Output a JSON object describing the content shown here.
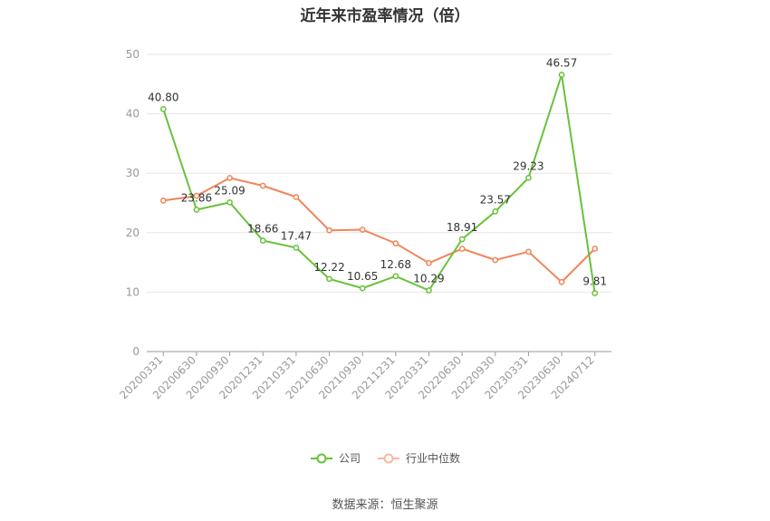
{
  "chart_data": {
    "type": "line",
    "title": "近年来市盈率情况（倍）",
    "xlabel": "",
    "ylabel": "",
    "categories": [
      "20200331",
      "20200630",
      "20200930",
      "20201231",
      "20210331",
      "20210630",
      "20210930",
      "20211231",
      "20220331",
      "20220630",
      "20220930",
      "20230331",
      "20230630",
      "20240712"
    ],
    "ylim": [
      0,
      50
    ],
    "yticks": [
      0,
      10,
      20,
      30,
      40,
      50
    ],
    "grid": true,
    "legend_position": "bottom",
    "series": [
      {
        "name": "公司",
        "color": "#67c23a",
        "values": [
          40.8,
          23.86,
          25.09,
          18.66,
          17.47,
          12.22,
          10.65,
          12.68,
          10.29,
          18.91,
          23.57,
          29.23,
          46.57,
          9.81
        ],
        "labels": [
          "40.80",
          "23.86",
          "25.09",
          "18.66",
          "17.47",
          "12.22",
          "10.65",
          "12.68",
          "10.29",
          "18.91",
          "23.57",
          "29.23",
          "46.57",
          "9.81"
        ]
      },
      {
        "name": "行业中位数",
        "color": "#f0855a",
        "values": [
          25.4,
          26.2,
          29.2,
          27.9,
          26.0,
          20.4,
          20.5,
          18.2,
          14.9,
          17.3,
          15.4,
          16.8,
          11.7,
          17.3
        ]
      }
    ]
  },
  "source": "数据来源：恒生聚源"
}
